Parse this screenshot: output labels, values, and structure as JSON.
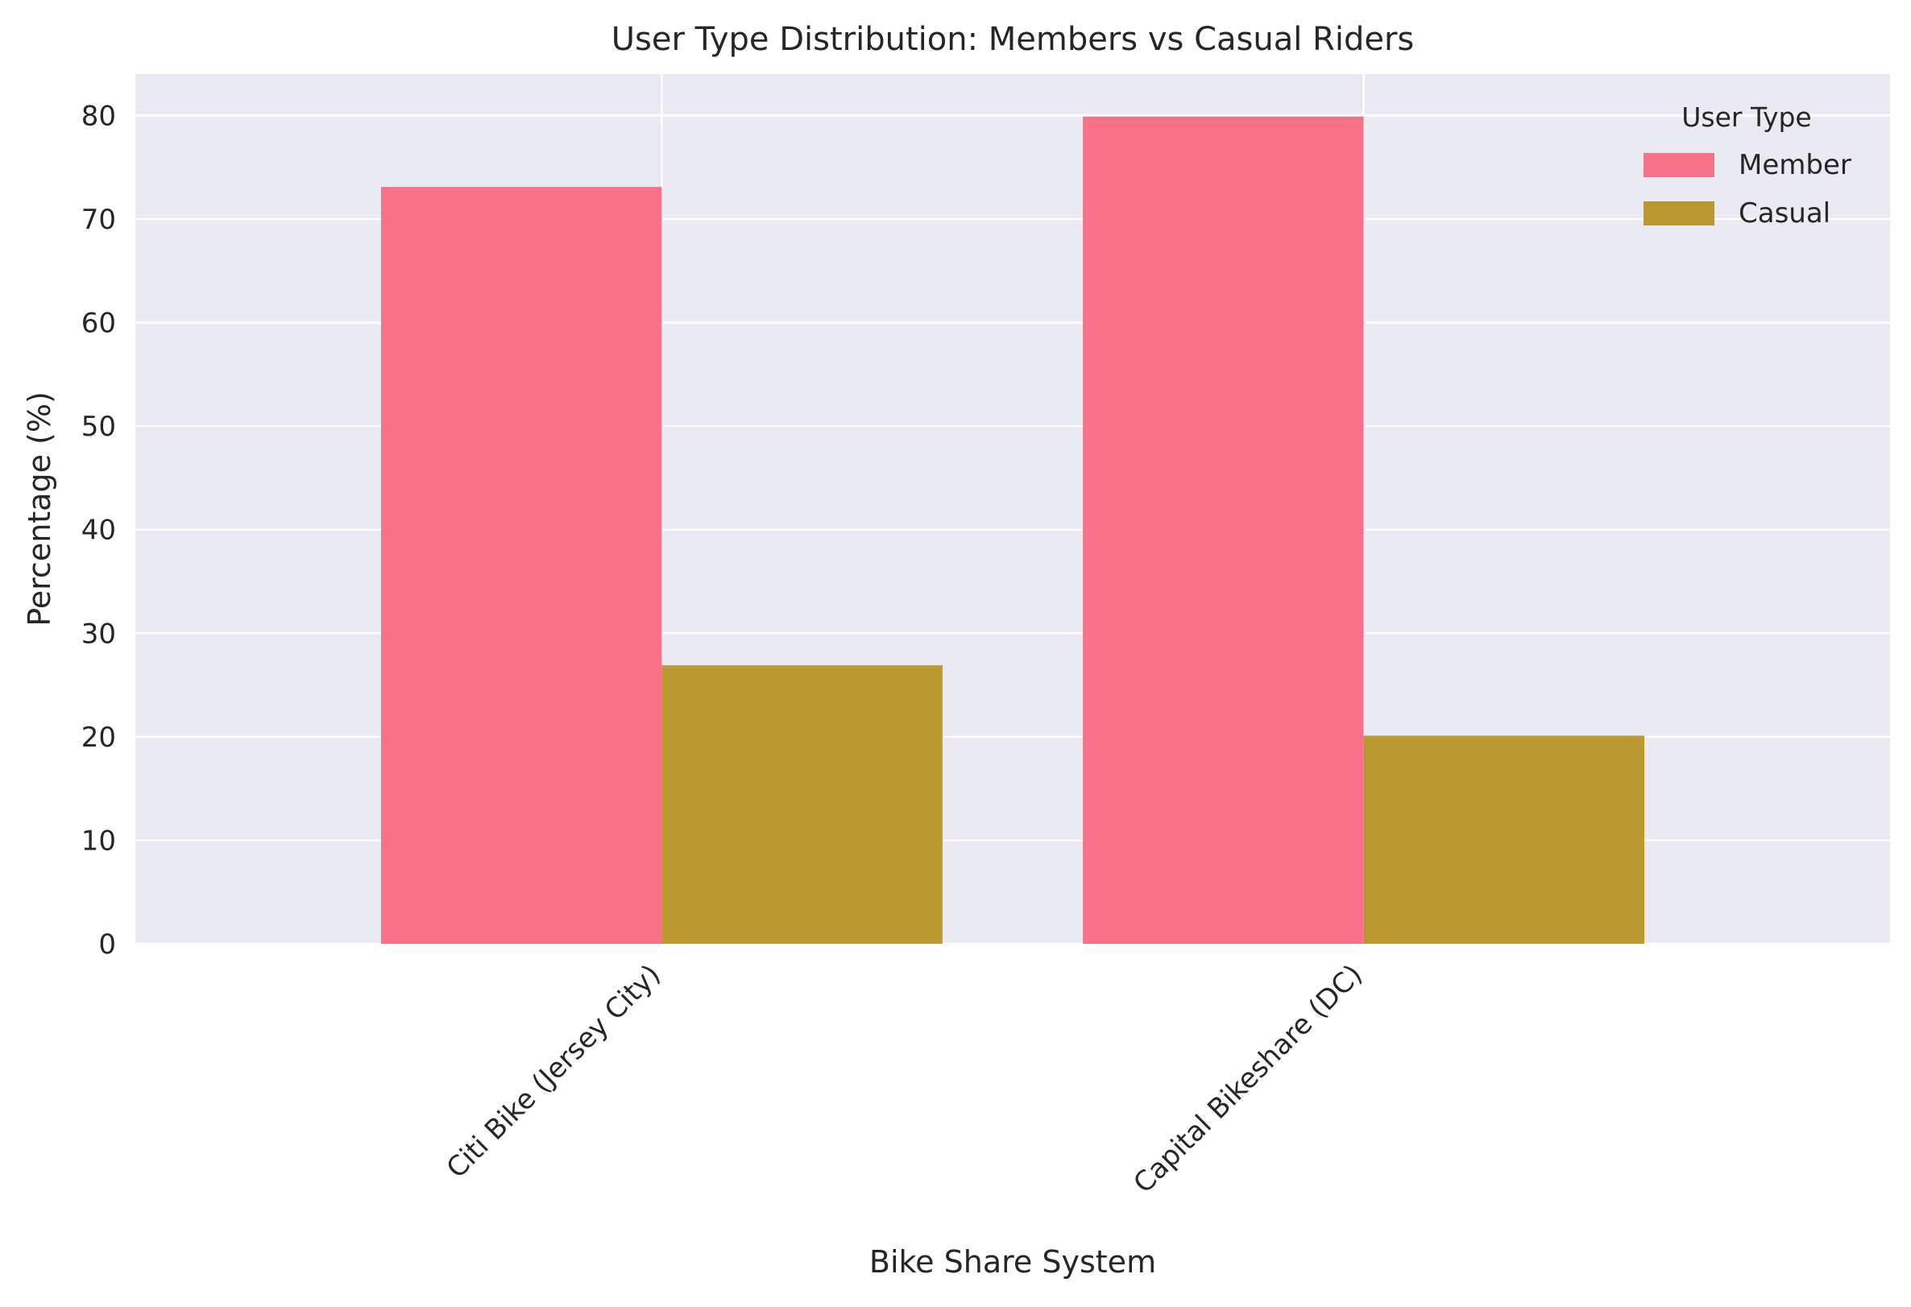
{
  "chart_data": {
    "type": "bar",
    "title": "User Type Distribution: Members vs Casual Riders",
    "xlabel": "Bike Share System",
    "ylabel": "Percentage (%)",
    "categories": [
      "Citi Bike (Jersey City)",
      "Capital Bikeshare (DC)"
    ],
    "series": [
      {
        "name": "Member",
        "values": [
          73.1,
          79.9
        ],
        "color": "#f77189"
      },
      {
        "name": "Casual",
        "values": [
          26.9,
          20.1
        ],
        "color": "#bb9832"
      }
    ],
    "ylim": [
      0,
      84
    ],
    "yticks": [
      0,
      10,
      20,
      30,
      40,
      50,
      60,
      70,
      80
    ],
    "grid": true,
    "legend": {
      "title": "User Type",
      "position": "top-right"
    },
    "colors": {
      "plot_background": "#eaeaf2",
      "grid": "#ffffff",
      "text": "#262626"
    }
  }
}
